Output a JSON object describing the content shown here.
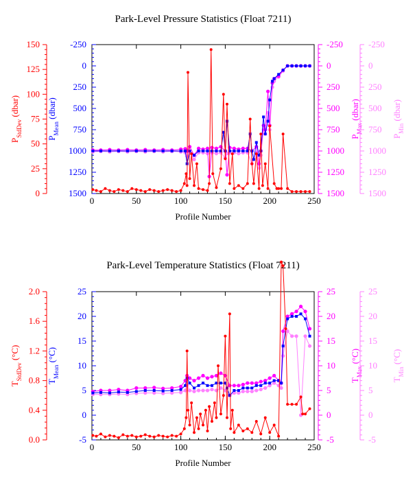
{
  "colors": {
    "stddev": "#ff0000",
    "mean": "#0000ff",
    "max": "#ff00ff",
    "min": "#ff80ff",
    "frame": "#000000"
  },
  "chart_data": [
    {
      "type": "line",
      "title": "Park-Level Pressure Statistics (Float 7211)",
      "xlabel": "Profile Number",
      "xlim": [
        0,
        250
      ],
      "xticks": [
        "0",
        "50",
        "100",
        "150",
        "200",
        "250"
      ],
      "axes": {
        "stddev": {
          "label": "P",
          "sub": "StdDev",
          "unit": " (dbar)",
          "ticks": [
            "150",
            "125",
            "100",
            "75",
            "50",
            "25",
            "0"
          ],
          "range": [
            0,
            150
          ]
        },
        "mean": {
          "label": "P",
          "sub": "Mean",
          "unit": " (dbar)",
          "ticks": [
            "-250",
            "0",
            "250",
            "500",
            "750",
            "1000",
            "1250",
            "1500"
          ],
          "range": [
            1500,
            -250
          ]
        },
        "max": {
          "label": "P",
          "sub": "Max",
          "unit": " (dbar)",
          "ticks": [
            "-250",
            "0",
            "250",
            "500",
            "750",
            "1000",
            "1250",
            "1500"
          ],
          "range": [
            1500,
            -250
          ]
        },
        "min": {
          "label": "P",
          "sub": "Min",
          "unit": " (dbar)",
          "ticks": [
            "-250",
            "0",
            "250",
            "500",
            "750",
            "1000",
            "1250",
            "1500"
          ],
          "range": [
            1500,
            -250
          ]
        }
      },
      "series": [
        {
          "key": "stddev",
          "axis": "stddev",
          "x": [
            1,
            5,
            10,
            15,
            20,
            25,
            30,
            35,
            40,
            45,
            50,
            55,
            60,
            65,
            70,
            75,
            80,
            85,
            90,
            95,
            100,
            104,
            106,
            107,
            108,
            110,
            112,
            115,
            118,
            120,
            125,
            130,
            132,
            134,
            136,
            140,
            145,
            148,
            150,
            152,
            155,
            158,
            160,
            165,
            170,
            175,
            178,
            180,
            182,
            185,
            188,
            190,
            192,
            195,
            198,
            200,
            205,
            208,
            210,
            213,
            215,
            220,
            225,
            230,
            235,
            240,
            245
          ],
          "y": [
            4,
            3,
            2,
            5,
            3,
            2,
            4,
            3,
            2,
            5,
            4,
            3,
            2,
            4,
            3,
            2,
            3,
            4,
            3,
            2,
            3,
            10,
            20,
            8,
            122,
            15,
            40,
            8,
            30,
            5,
            4,
            3,
            10,
            145,
            20,
            6,
            25,
            100,
            35,
            90,
            10,
            40,
            5,
            8,
            5,
            10,
            75,
            30,
            10,
            40,
            5,
            60,
            8,
            30,
            5,
            68,
            10,
            5,
            5,
            5,
            60,
            5,
            2,
            2,
            2,
            2,
            2
          ]
        },
        {
          "key": "mean",
          "axis": "mean",
          "x": [
            1,
            10,
            20,
            30,
            40,
            50,
            60,
            70,
            80,
            90,
            100,
            105,
            107,
            110,
            115,
            120,
            125,
            130,
            135,
            140,
            145,
            148,
            150,
            152,
            155,
            160,
            165,
            170,
            175,
            178,
            180,
            182,
            185,
            188,
            190,
            193,
            195,
            198,
            200,
            203,
            205,
            210,
            215,
            220,
            225,
            230,
            235,
            240,
            245
          ],
          "y": [
            1000,
            1000,
            1000,
            1000,
            1000,
            1000,
            1000,
            1000,
            1000,
            1000,
            1000,
            1000,
            1150,
            1000,
            1050,
            1000,
            1000,
            1000,
            1000,
            1000,
            1000,
            780,
            1000,
            650,
            1000,
            1000,
            1000,
            1000,
            1000,
            800,
            1000,
            1100,
            900,
            1050,
            1000,
            600,
            800,
            650,
            400,
            180,
            150,
            100,
            50,
            0,
            0,
            0,
            0,
            0,
            0
          ]
        },
        {
          "key": "max",
          "axis": "max",
          "x": [
            1,
            10,
            20,
            30,
            40,
            50,
            60,
            70,
            80,
            90,
            100,
            105,
            107,
            110,
            115,
            120,
            125,
            130,
            132,
            135,
            140,
            145,
            150,
            152,
            155,
            160,
            165,
            170,
            175,
            180,
            185,
            188,
            190,
            193,
            195,
            198,
            200,
            203,
            205,
            210,
            215,
            220,
            225,
            230,
            235,
            240,
            245
          ],
          "y": [
            990,
            990,
            985,
            990,
            985,
            990,
            985,
            990,
            985,
            990,
            980,
            975,
            1000,
            950,
            1050,
            970,
            980,
            970,
            1300,
            960,
            970,
            950,
            1000,
            1280,
            960,
            970,
            980,
            970,
            970,
            1000,
            950,
            1150,
            1000,
            700,
            750,
            300,
            700,
            200,
            150,
            120,
            50,
            0,
            0,
            0,
            0,
            0,
            0
          ]
        },
        {
          "key": "min",
          "axis": "min",
          "x": [
            1,
            10,
            20,
            30,
            40,
            50,
            60,
            70,
            80,
            90,
            100,
            105,
            107,
            110,
            115,
            120,
            125,
            130,
            135,
            140,
            145,
            150,
            152,
            155,
            160,
            165,
            170,
            175,
            180,
            185,
            188,
            190,
            193,
            195,
            198,
            200,
            203,
            205,
            210,
            215,
            220,
            225,
            230,
            235,
            240,
            245
          ],
          "y": [
            1010,
            1005,
            1010,
            1005,
            1010,
            1005,
            1010,
            1005,
            1010,
            1005,
            1010,
            1020,
            1060,
            1020,
            1100,
            1020,
            1020,
            1030,
            1020,
            1030,
            1020,
            1080,
            1030,
            1020,
            1020,
            1030,
            1020,
            1020,
            1150,
            1020,
            1200,
            1050,
            750,
            800,
            550,
            750,
            250,
            180,
            130,
            60,
            0,
            0,
            0,
            0,
            0,
            0
          ]
        }
      ]
    },
    {
      "type": "line",
      "title": "Park-Level Temperature Statistics (Float 7211)",
      "xlabel": "Profile Number",
      "xlim": [
        0,
        250
      ],
      "xticks": [
        "0",
        "50",
        "100",
        "150",
        "200",
        "250"
      ],
      "axes": {
        "stddev": {
          "label": "T",
          "sub": "StdDev",
          "unit": " (°C)",
          "ticks": [
            "2.0",
            "1.6",
            "1.2",
            "0.8",
            "0.4",
            "0.0"
          ],
          "range": [
            0,
            2
          ]
        },
        "mean": {
          "label": "T",
          "sub": "Mean",
          "unit": " (°C)",
          "ticks": [
            "25",
            "20",
            "15",
            "10",
            "5",
            "0",
            "-5"
          ],
          "range": [
            -5,
            25
          ]
        },
        "max": {
          "label": "T",
          "sub": "Max",
          "unit": " (°C)",
          "ticks": [
            "25",
            "20",
            "15",
            "10",
            "5",
            "0",
            "-5"
          ],
          "range": [
            -5,
            25
          ]
        },
        "min": {
          "label": "T",
          "sub": "Min",
          "unit": " (°C)",
          "ticks": [
            "25",
            "20",
            "15",
            "10",
            "5",
            "0",
            "-5"
          ],
          "range": [
            -5,
            25
          ]
        }
      },
      "series": [
        {
          "key": "stddev",
          "axis": "stddev",
          "x": [
            1,
            5,
            10,
            15,
            20,
            25,
            30,
            35,
            40,
            45,
            50,
            55,
            60,
            65,
            70,
            75,
            80,
            85,
            90,
            95,
            100,
            104,
            106,
            107,
            108,
            110,
            112,
            115,
            118,
            120,
            122,
            125,
            128,
            130,
            132,
            135,
            138,
            140,
            142,
            145,
            148,
            150,
            152,
            155,
            156,
            158,
            160,
            165,
            170,
            175,
            180,
            185,
            190,
            195,
            200,
            205,
            210,
            213,
            215,
            218,
            220,
            225,
            230,
            235,
            237,
            240,
            245
          ],
          "y": [
            0.06,
            0.05,
            0.08,
            0.04,
            0.06,
            0.05,
            0.03,
            0.07,
            0.05,
            0.06,
            0.04,
            0.05,
            0.07,
            0.05,
            0.04,
            0.06,
            0.05,
            0.04,
            0.06,
            0.05,
            0.08,
            0.15,
            0.3,
            1.2,
            0.4,
            0.2,
            0.5,
            0.1,
            0.3,
            0.15,
            0.35,
            0.2,
            0.4,
            0.12,
            0.45,
            0.25,
            0.5,
            0.3,
            1.0,
            0.35,
            0.6,
            1.4,
            0.3,
            1.7,
            0.15,
            0.4,
            0.1,
            0.2,
            0.12,
            0.15,
            0.1,
            0.25,
            0.08,
            0.3,
            0.1,
            0.2,
            0.05,
            2.4,
            2.35,
            1.5,
            0.48,
            0.48,
            0.48,
            0.58,
            0.35,
            0.35,
            0.42
          ]
        },
        {
          "key": "mean",
          "axis": "mean",
          "x": [
            1,
            10,
            20,
            30,
            40,
            50,
            60,
            70,
            80,
            90,
            100,
            105,
            107,
            110,
            115,
            120,
            125,
            130,
            135,
            140,
            145,
            150,
            152,
            155,
            160,
            165,
            170,
            175,
            180,
            185,
            190,
            195,
            200,
            205,
            210,
            213,
            215,
            220,
            225,
            230,
            235,
            240,
            245
          ],
          "y": [
            4.5,
            4.6,
            4.5,
            4.7,
            4.6,
            4.8,
            5.0,
            5.0,
            4.9,
            5.0,
            5.2,
            6.0,
            7.5,
            6.5,
            5.5,
            6.0,
            6.5,
            6.0,
            6.0,
            6.5,
            6.5,
            6.5,
            5.5,
            4.0,
            5.0,
            5.0,
            5.5,
            5.5,
            5.5,
            6.0,
            6.0,
            6.5,
            6.5,
            7.0,
            7.0,
            6.5,
            14.0,
            19.5,
            20.0,
            20.0,
            20.5,
            19.5,
            16.0
          ]
        },
        {
          "key": "max",
          "axis": "max",
          "x": [
            1,
            10,
            20,
            30,
            40,
            50,
            60,
            70,
            80,
            90,
            100,
            105,
            107,
            110,
            115,
            120,
            125,
            130,
            135,
            140,
            145,
            150,
            155,
            160,
            165,
            170,
            175,
            180,
            185,
            190,
            195,
            200,
            205,
            210,
            213,
            215,
            220,
            225,
            230,
            235,
            240,
            245
          ],
          "y": [
            4.8,
            5.0,
            5.0,
            5.2,
            5.0,
            5.5,
            5.5,
            5.6,
            5.4,
            5.5,
            5.8,
            7.0,
            8.0,
            7.5,
            7.0,
            7.5,
            8.0,
            7.5,
            7.8,
            8.0,
            8.5,
            8.0,
            6.0,
            6.0,
            6.0,
            6.2,
            6.5,
            6.5,
            6.5,
            6.8,
            7.0,
            7.5,
            8.0,
            7.0,
            6.5,
            17.0,
            20.0,
            20.5,
            21.0,
            22.0,
            21.0,
            17.5
          ]
        },
        {
          "key": "min",
          "axis": "min",
          "x": [
            1,
            10,
            20,
            30,
            40,
            50,
            60,
            70,
            80,
            90,
            100,
            105,
            107,
            110,
            115,
            120,
            125,
            130,
            135,
            140,
            145,
            150,
            155,
            160,
            165,
            170,
            175,
            180,
            185,
            190,
            195,
            200,
            205,
            210,
            213,
            215,
            220,
            225,
            230,
            235,
            240,
            245
          ],
          "y": [
            4.2,
            4.2,
            4.2,
            4.3,
            4.2,
            4.4,
            4.5,
            4.5,
            4.4,
            4.5,
            4.6,
            5.0,
            6.0,
            5.0,
            4.8,
            5.0,
            5.0,
            5.0,
            5.2,
            5.0,
            5.5,
            5.0,
            4.0,
            4.5,
            4.5,
            4.8,
            4.8,
            4.8,
            5.0,
            5.2,
            5.5,
            6.0,
            6.5,
            6.0,
            5.5,
            12.0,
            17.0,
            16.0,
            16.0,
            0.0,
            16.0,
            14.0
          ]
        }
      ]
    }
  ]
}
